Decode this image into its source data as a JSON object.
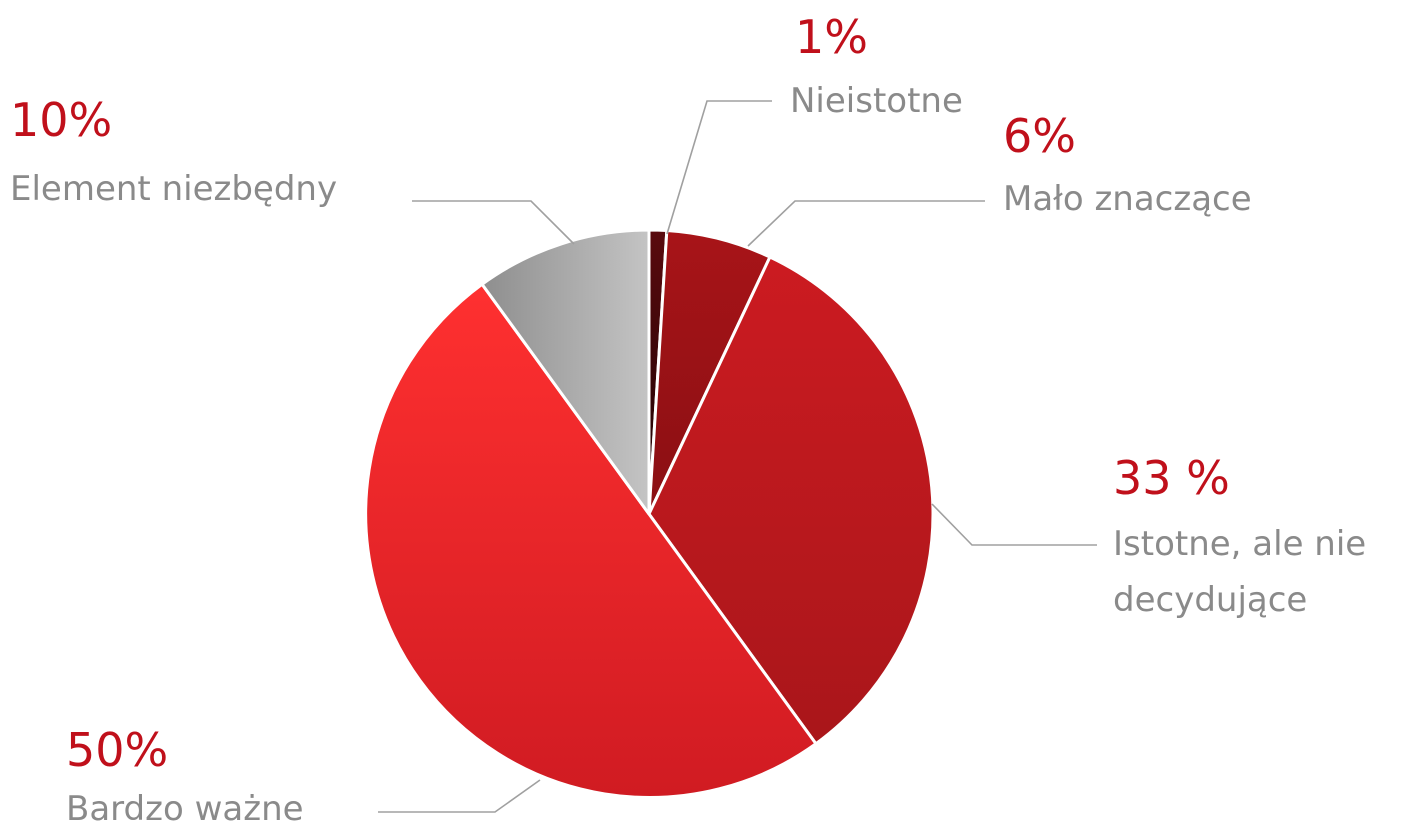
{
  "chart_data": {
    "type": "pie",
    "title": "",
    "start_angle_deg": 0,
    "direction": "clockwise",
    "slices": [
      {
        "label": "Nieistotne",
        "value": 1,
        "value_label": "1%",
        "color_start": "#5a0a0e",
        "color_end": "#1a0203"
      },
      {
        "label": "Mało znaczące",
        "value": 6,
        "value_label": "6%",
        "color_start": "#a81418",
        "color_end": "#8a0f13"
      },
      {
        "label_lines": [
          "Istotne, ale nie",
          "decydujące"
        ],
        "label": "Istotne, ale nie decydujące",
        "value": 33,
        "value_label": "33 %",
        "color_start": "#cc1b21",
        "color_end": "#a9161a"
      },
      {
        "label": "Bardzo ważne",
        "value": 50,
        "value_label": "50%",
        "color_start": "#ff3030",
        "color_end": "#d01b22"
      },
      {
        "label": "Element niezbędny",
        "value": 10,
        "value_label": "10%",
        "color_start": "#8e8e8e",
        "color_end": "#c4c4c4"
      }
    ]
  },
  "colors": {
    "value_label": "#c0101b",
    "category_label": "#8a8a8a",
    "leader_line": "#a0a0a0",
    "slice_border": "#ffffff"
  }
}
